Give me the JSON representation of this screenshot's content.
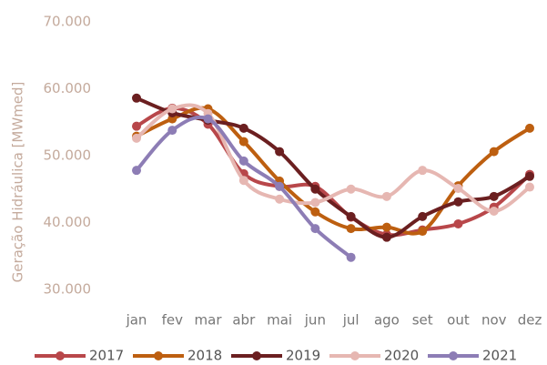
{
  "chart_data": {
    "type": "line",
    "y_label": "Geração Hidráulica [MWmed]",
    "categories": [
      "jan",
      "fev",
      "mar",
      "abr",
      "mai",
      "jun",
      "jul",
      "ago",
      "set",
      "out",
      "nov",
      "dez"
    ],
    "ylim": [
      30000,
      70000
    ],
    "yticks": [
      {
        "value": 30000,
        "label": "30.000"
      },
      {
        "value": 40000,
        "label": "40.000"
      },
      {
        "value": 50000,
        "label": "50.000"
      },
      {
        "value": 60000,
        "label": "60.000"
      },
      {
        "value": 70000,
        "label": "70.000"
      }
    ],
    "grid": false,
    "legend": "bottom",
    "series": [
      {
        "name": "2017",
        "color": "#b8474a",
        "values": [
          54400,
          57100,
          54700,
          47300,
          45400,
          45400,
          40800,
          38200,
          38900,
          39800,
          42300,
          47200
        ]
      },
      {
        "name": "2018",
        "color": "#bd5f10",
        "values": [
          52900,
          55500,
          57000,
          52100,
          46200,
          41600,
          39100,
          39300,
          38700,
          45500,
          50600,
          54100
        ]
      },
      {
        "name": "2019",
        "color": "#6b1f20",
        "values": [
          58600,
          56400,
          55300,
          54100,
          50600,
          45000,
          40900,
          37800,
          40900,
          43100,
          43900,
          46900
        ]
      },
      {
        "name": "2020",
        "color": "#e6b7b2",
        "values": [
          52600,
          57000,
          56300,
          46300,
          43500,
          43000,
          45000,
          43900,
          47800,
          45100,
          41700,
          45300
        ]
      },
      {
        "name": "2021",
        "color": "#8d7db5",
        "values": [
          47800,
          53800,
          55500,
          49200,
          45400,
          39100,
          34800,
          null,
          null,
          null,
          null,
          null
        ]
      }
    ]
  }
}
